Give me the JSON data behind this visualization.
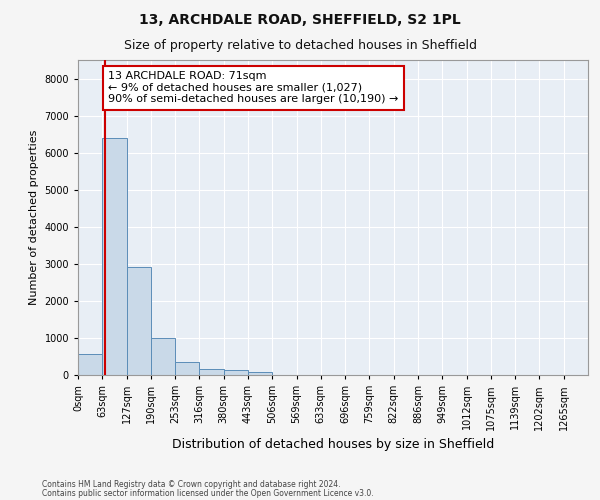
{
  "title1": "13, ARCHDALE ROAD, SHEFFIELD, S2 1PL",
  "title2": "Size of property relative to detached houses in Sheffield",
  "xlabel": "Distribution of detached houses by size in Sheffield",
  "ylabel": "Number of detached properties",
  "footer1": "Contains HM Land Registry data © Crown copyright and database right 2024.",
  "footer2": "Contains public sector information licensed under the Open Government Licence v3.0.",
  "bar_labels": [
    "0sqm",
    "63sqm",
    "127sqm",
    "190sqm",
    "253sqm",
    "316sqm",
    "380sqm",
    "443sqm",
    "506sqm",
    "569sqm",
    "633sqm",
    "696sqm",
    "759sqm",
    "822sqm",
    "886sqm",
    "949sqm",
    "1012sqm",
    "1075sqm",
    "1139sqm",
    "1202sqm",
    "1265sqm"
  ],
  "bar_values": [
    570,
    6400,
    2920,
    990,
    350,
    170,
    130,
    90,
    10,
    0,
    0,
    0,
    0,
    0,
    0,
    0,
    0,
    0,
    0,
    0,
    0
  ],
  "bar_color": "#c9d9e8",
  "bar_edge_color": "#5b8db8",
  "ylim": [
    0,
    8500
  ],
  "yticks": [
    0,
    1000,
    2000,
    3000,
    4000,
    5000,
    6000,
    7000,
    8000
  ],
  "vline_color": "#cc0000",
  "annotation_line1": "13 ARCHDALE ROAD: 71sqm",
  "annotation_line2": "← 9% of detached houses are smaller (1,027)",
  "annotation_line3": "90% of semi-detached houses are larger (10,190) →",
  "annotation_box_color": "#cc0000",
  "background_color": "#e8eef5",
  "grid_color": "#ffffff",
  "fig_background": "#f5f5f5",
  "title_fontsize": 10,
  "subtitle_fontsize": 9,
  "tick_fontsize": 7,
  "ylabel_fontsize": 8,
  "xlabel_fontsize": 9,
  "annotation_fontsize": 8,
  "vline_x_data": 1.127
}
